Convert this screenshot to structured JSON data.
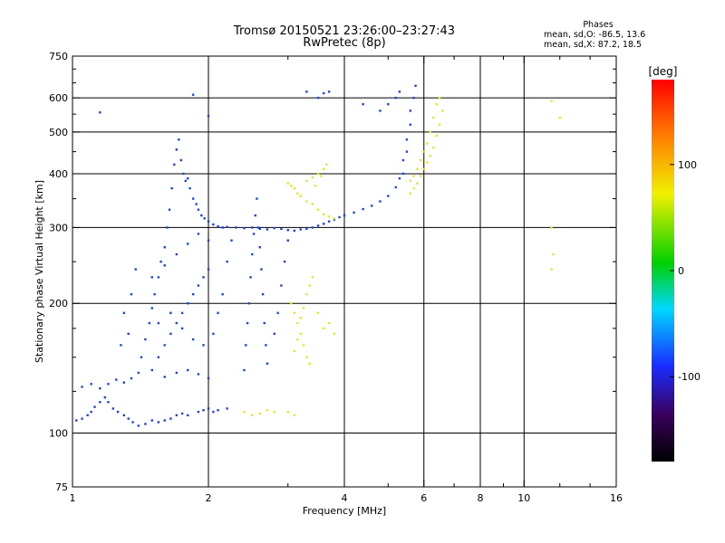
{
  "header": {
    "title": "Tromsø 20150521 23:26:00–23:27:43",
    "subtitle": "RwPretec (8p)"
  },
  "phase_box": {
    "title": "Phases",
    "line_o": "mean, sd,O: -86.5, 13.6",
    "line_x": "mean, sd,X:  87.2, 18.5"
  },
  "colorbar": {
    "label": "[deg]",
    "ticks": [
      {
        "value": 100,
        "label": "100"
      },
      {
        "value": 0,
        "label": "0"
      },
      {
        "value": -100,
        "label": "-100"
      }
    ],
    "range": [
      -180,
      180
    ]
  },
  "chart_data": {
    "type": "scatter",
    "xlabel": "Frequency [MHz]",
    "ylabel": "Stationary phase Virtual Height [km]",
    "xscale": "log",
    "yscale": "log",
    "xlim": [
      1,
      16
    ],
    "ylim": [
      75,
      750
    ],
    "xticks": [
      {
        "v": 1,
        "label": "1"
      },
      {
        "v": 2,
        "label": "2"
      },
      {
        "v": 4,
        "label": "4"
      },
      {
        "v": 6,
        "label": "6"
      },
      {
        "v": 8,
        "label": "8"
      },
      {
        "v": 10,
        "label": "10"
      },
      {
        "v": 16,
        "label": "16"
      }
    ],
    "xminor": [
      3,
      5,
      7,
      9,
      12,
      14
    ],
    "xgrid": [
      2,
      4,
      6,
      8,
      10
    ],
    "yticks": [
      {
        "v": 75,
        "label": "75"
      },
      {
        "v": 100,
        "label": "100"
      },
      {
        "v": 200,
        "label": "200"
      },
      {
        "v": 300,
        "label": "300"
      },
      {
        "v": 400,
        "label": "400"
      },
      {
        "v": 500,
        "label": "500"
      },
      {
        "v": 600,
        "label": "600"
      },
      {
        "v": 750,
        "label": "750"
      }
    ],
    "yminor": [
      125,
      150,
      175,
      250,
      350,
      450,
      550,
      650,
      700
    ],
    "ygrid": [
      100,
      200,
      300,
      400,
      500,
      600
    ],
    "series": [
      {
        "values": [
          [
            1.02,
            107
          ],
          [
            1.05,
            108
          ],
          [
            1.08,
            110
          ],
          [
            1.1,
            112
          ],
          [
            1.12,
            115
          ],
          [
            1.15,
            118
          ],
          [
            1.18,
            121
          ],
          [
            1.2,
            118
          ],
          [
            1.23,
            114
          ],
          [
            1.26,
            112
          ],
          [
            1.3,
            110
          ],
          [
            1.33,
            108
          ],
          [
            1.36,
            106
          ],
          [
            1.4,
            104
          ],
          [
            1.45,
            105
          ],
          [
            1.5,
            107
          ],
          [
            1.55,
            106
          ],
          [
            1.6,
            107
          ],
          [
            1.65,
            108
          ],
          [
            1.7,
            110
          ],
          [
            1.75,
            111
          ],
          [
            1.8,
            110
          ],
          [
            1.9,
            112
          ],
          [
            1.95,
            113
          ],
          [
            2.0,
            114
          ],
          [
            2.05,
            112
          ],
          [
            2.1,
            113
          ],
          [
            2.2,
            114
          ],
          [
            1.05,
            128
          ],
          [
            1.1,
            130
          ],
          [
            1.15,
            127
          ],
          [
            1.2,
            130
          ],
          [
            1.25,
            133
          ],
          [
            1.3,
            131
          ],
          [
            1.35,
            134
          ],
          [
            1.4,
            138
          ],
          [
            1.42,
            150
          ],
          [
            1.45,
            165
          ],
          [
            1.48,
            180
          ],
          [
            1.5,
            195
          ],
          [
            1.52,
            210
          ],
          [
            1.55,
            230
          ],
          [
            1.57,
            250
          ],
          [
            1.6,
            270
          ],
          [
            1.62,
            300
          ],
          [
            1.64,
            330
          ],
          [
            1.66,
            370
          ],
          [
            1.68,
            420
          ],
          [
            1.7,
            455
          ],
          [
            1.72,
            480
          ],
          [
            1.74,
            430
          ],
          [
            1.76,
            400
          ],
          [
            1.78,
            385
          ],
          [
            1.8,
            390
          ],
          [
            1.82,
            370
          ],
          [
            1.85,
            350
          ],
          [
            1.88,
            340
          ],
          [
            1.9,
            330
          ],
          [
            1.93,
            320
          ],
          [
            1.96,
            315
          ],
          [
            2.0,
            310
          ],
          [
            2.05,
            305
          ],
          [
            2.1,
            302
          ],
          [
            2.15,
            300
          ],
          [
            2.2,
            301
          ],
          [
            2.3,
            300
          ],
          [
            2.4,
            299
          ],
          [
            2.5,
            300
          ],
          [
            2.6,
            298
          ],
          [
            2.7,
            297
          ],
          [
            2.8,
            299
          ],
          [
            2.9,
            298
          ],
          [
            3.0,
            296
          ],
          [
            3.1,
            295
          ],
          [
            3.2,
            297
          ],
          [
            3.3,
            298
          ],
          [
            3.4,
            300
          ],
          [
            3.5,
            303
          ],
          [
            3.6,
            306
          ],
          [
            3.7,
            310
          ],
          [
            3.8,
            313
          ],
          [
            3.9,
            317
          ],
          [
            4.0,
            320
          ],
          [
            4.2,
            325
          ],
          [
            4.4,
            331
          ],
          [
            4.6,
            337
          ],
          [
            4.8,
            345
          ],
          [
            5.0,
            355
          ],
          [
            5.2,
            372
          ],
          [
            5.4,
            400
          ],
          [
            5.5,
            450
          ],
          [
            5.6,
            520
          ],
          [
            5.7,
            600
          ],
          [
            5.75,
            640
          ],
          [
            5.6,
            560
          ],
          [
            5.5,
            480
          ],
          [
            5.4,
            430
          ],
          [
            5.3,
            390
          ],
          [
            1.5,
            140
          ],
          [
            1.55,
            150
          ],
          [
            1.6,
            160
          ],
          [
            1.65,
            170
          ],
          [
            1.7,
            180
          ],
          [
            1.75,
            190
          ],
          [
            1.8,
            200
          ],
          [
            1.85,
            210
          ],
          [
            1.9,
            220
          ],
          [
            1.95,
            230
          ],
          [
            2.0,
            240
          ],
          [
            1.6,
            135
          ],
          [
            1.7,
            138
          ],
          [
            1.8,
            140
          ],
          [
            1.9,
            137
          ],
          [
            2.0,
            134
          ],
          [
            1.5,
            230
          ],
          [
            1.6,
            245
          ],
          [
            1.7,
            260
          ],
          [
            1.8,
            275
          ],
          [
            1.9,
            290
          ],
          [
            2.0,
            280
          ],
          [
            1.55,
            180
          ],
          [
            1.65,
            190
          ],
          [
            1.75,
            175
          ],
          [
            1.85,
            165
          ],
          [
            1.95,
            160
          ],
          [
            2.05,
            170
          ],
          [
            2.1,
            190
          ],
          [
            2.15,
            210
          ],
          [
            2.2,
            250
          ],
          [
            2.25,
            280
          ],
          [
            2.4,
            140
          ],
          [
            2.42,
            160
          ],
          [
            2.44,
            180
          ],
          [
            2.46,
            200
          ],
          [
            2.48,
            230
          ],
          [
            2.5,
            260
          ],
          [
            2.52,
            290
          ],
          [
            2.54,
            320
          ],
          [
            2.56,
            350
          ],
          [
            2.58,
            300
          ],
          [
            2.6,
            270
          ],
          [
            2.62,
            240
          ],
          [
            2.64,
            210
          ],
          [
            2.66,
            180
          ],
          [
            2.68,
            160
          ],
          [
            2.7,
            145
          ],
          [
            2.8,
            170
          ],
          [
            2.85,
            190
          ],
          [
            2.9,
            220
          ],
          [
            2.95,
            250
          ],
          [
            3.0,
            280
          ],
          [
            1.3,
            190
          ],
          [
            1.35,
            210
          ],
          [
            1.38,
            240
          ],
          [
            1.33,
            170
          ],
          [
            1.28,
            160
          ],
          [
            3.3,
            620
          ],
          [
            3.5,
            600
          ],
          [
            3.6,
            615
          ],
          [
            3.7,
            620
          ],
          [
            4.4,
            580
          ],
          [
            4.8,
            560
          ],
          [
            5.0,
            580
          ],
          [
            5.2,
            600
          ],
          [
            5.3,
            620
          ],
          [
            1.85,
            610
          ],
          [
            2.0,
            545
          ],
          [
            1.15,
            555
          ]
        ],
        "color": "blue"
      },
      {
        "values": [
          [
            3.0,
            380
          ],
          [
            3.05,
            375
          ],
          [
            3.1,
            370
          ],
          [
            3.15,
            360
          ],
          [
            3.2,
            355
          ],
          [
            3.3,
            345
          ],
          [
            3.4,
            340
          ],
          [
            3.5,
            330
          ],
          [
            3.6,
            322
          ],
          [
            3.7,
            318
          ],
          [
            3.8,
            315
          ],
          [
            3.3,
            385
          ],
          [
            3.4,
            392
          ],
          [
            3.5,
            400
          ],
          [
            3.6,
            410
          ],
          [
            3.65,
            420
          ],
          [
            3.55,
            395
          ],
          [
            3.45,
            375
          ],
          [
            5.6,
            360
          ],
          [
            5.7,
            370
          ],
          [
            5.8,
            380
          ],
          [
            5.9,
            395
          ],
          [
            6.0,
            410
          ],
          [
            6.1,
            425
          ],
          [
            6.2,
            440
          ],
          [
            6.3,
            460
          ],
          [
            6.4,
            490
          ],
          [
            6.5,
            520
          ],
          [
            6.6,
            560
          ],
          [
            6.5,
            600
          ],
          [
            6.4,
            580
          ],
          [
            6.3,
            540
          ],
          [
            6.2,
            500
          ],
          [
            6.1,
            470
          ],
          [
            6.0,
            450
          ],
          [
            5.9,
            430
          ],
          [
            5.8,
            410
          ],
          [
            5.7,
            395
          ],
          [
            5.6,
            385
          ],
          [
            3.05,
            200
          ],
          [
            3.1,
            190
          ],
          [
            3.15,
            180
          ],
          [
            3.2,
            170
          ],
          [
            3.25,
            160
          ],
          [
            3.3,
            150
          ],
          [
            3.35,
            145
          ],
          [
            3.1,
            155
          ],
          [
            3.15,
            165
          ],
          [
            3.2,
            185
          ],
          [
            3.25,
            195
          ],
          [
            3.3,
            210
          ],
          [
            3.35,
            220
          ],
          [
            3.4,
            230
          ],
          [
            3.5,
            190
          ],
          [
            3.6,
            175
          ],
          [
            3.7,
            180
          ],
          [
            3.8,
            170
          ],
          [
            2.4,
            112
          ],
          [
            2.5,
            110
          ],
          [
            2.6,
            111
          ],
          [
            2.7,
            113
          ],
          [
            2.8,
            112
          ],
          [
            3.0,
            112
          ],
          [
            3.1,
            110
          ],
          [
            11.5,
            590
          ],
          [
            12.0,
            540
          ],
          [
            11.5,
            300
          ],
          [
            11.6,
            260
          ],
          [
            11.5,
            240
          ]
        ],
        "color": "yellow"
      }
    ]
  }
}
